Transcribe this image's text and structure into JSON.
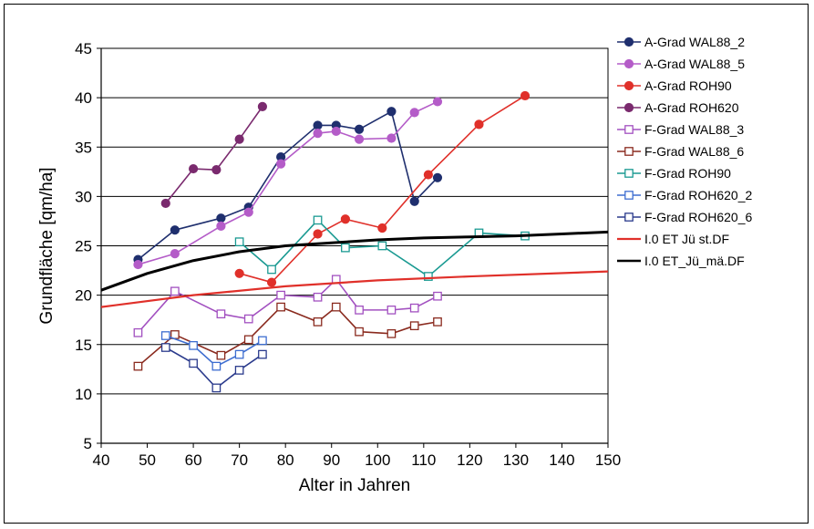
{
  "chart_data": {
    "type": "line",
    "title": "",
    "xlabel": "Alter in Jahren",
    "ylabel": "Grundfläche [qm/ha]",
    "xlim": [
      40,
      150
    ],
    "ylim": [
      5,
      45
    ],
    "xticks": [
      40,
      50,
      60,
      70,
      80,
      90,
      100,
      110,
      120,
      130,
      140,
      150
    ],
    "yticks": [
      5,
      10,
      15,
      20,
      25,
      30,
      35,
      40,
      45
    ],
    "grid": "horizontal",
    "legend_position": "right",
    "series": [
      {
        "name": "A-Grad WAL88_2",
        "color": "#1f2f6e",
        "marker": "filled-circle",
        "x": [
          48,
          56,
          66,
          72,
          79,
          87,
          91,
          96,
          103,
          108,
          113
        ],
        "y": [
          23.6,
          26.6,
          27.8,
          28.9,
          34.0,
          37.2,
          37.2,
          36.8,
          38.6,
          29.5,
          31.9
        ]
      },
      {
        "name": "A-Grad WAL88_5",
        "color": "#b45cc8",
        "marker": "filled-circle",
        "x": [
          48,
          56,
          66,
          72,
          79,
          87,
          91,
          96,
          103,
          108,
          113
        ],
        "y": [
          23.1,
          24.2,
          27.0,
          28.4,
          33.3,
          36.4,
          36.6,
          35.8,
          35.9,
          38.5,
          39.6
        ]
      },
      {
        "name": "A-Grad ROH90",
        "color": "#e0302a",
        "marker": "filled-circle",
        "x": [
          70,
          77,
          87,
          93,
          101,
          111,
          122,
          132
        ],
        "y": [
          22.2,
          21.3,
          26.2,
          27.7,
          26.8,
          32.2,
          37.3,
          40.2
        ]
      },
      {
        "name": "A-Grad ROH620",
        "color": "#7a2a6e",
        "marker": "filled-circle",
        "x": [
          54,
          60,
          65,
          70,
          75
        ],
        "y": [
          29.3,
          32.8,
          32.7,
          35.8,
          39.1
        ]
      },
      {
        "name": "F-Grad WAL88_3",
        "color": "#a250c0",
        "marker": "open-square",
        "x": [
          48,
          56,
          66,
          72,
          79,
          87,
          91,
          96,
          103,
          108,
          113
        ],
        "y": [
          16.2,
          20.4,
          18.1,
          17.6,
          20.0,
          19.8,
          21.6,
          18.5,
          18.5,
          18.7,
          19.9
        ]
      },
      {
        "name": "F-Grad WAL88_6",
        "color": "#8a2a1e",
        "marker": "open-square",
        "x": [
          48,
          56,
          66,
          72,
          79,
          87,
          91,
          96,
          103,
          108,
          113
        ],
        "y": [
          12.8,
          16.0,
          13.9,
          15.5,
          18.8,
          17.3,
          18.8,
          16.3,
          16.1,
          16.9,
          17.3
        ]
      },
      {
        "name": "F-Grad ROH90",
        "color": "#1a9a92",
        "marker": "open-square",
        "x": [
          70,
          77,
          87,
          93,
          101,
          111,
          122,
          132
        ],
        "y": [
          25.4,
          22.6,
          27.6,
          24.8,
          25.0,
          21.9,
          26.3,
          26.0
        ]
      },
      {
        "name": "F-Grad ROH620_2",
        "color": "#3d6dd0",
        "marker": "open-square",
        "x": [
          54,
          60,
          65,
          70,
          75
        ],
        "y": [
          15.9,
          14.9,
          12.8,
          14.0,
          15.4
        ]
      },
      {
        "name": "F-Grad ROH620_6",
        "color": "#2a3a8c",
        "marker": "open-square",
        "x": [
          54,
          60,
          65,
          70,
          75
        ],
        "y": [
          14.7,
          13.1,
          10.6,
          12.4,
          14.0
        ]
      },
      {
        "name": "I.0 ET  Jü  st.DF",
        "color": "#e0302a",
        "marker": "none",
        "width": 2.2,
        "x": [
          40,
          60,
          80,
          100,
          120,
          150
        ],
        "y": [
          18.8,
          20.0,
          20.9,
          21.5,
          21.9,
          22.4
        ]
      },
      {
        "name": "I.0 ET_Jü_mä.DF",
        "color": "#000000",
        "marker": "none",
        "width": 3,
        "x": [
          40,
          50,
          60,
          70,
          80,
          90,
          100,
          110,
          120,
          130,
          140,
          150
        ],
        "y": [
          20.5,
          22.2,
          23.5,
          24.4,
          25.0,
          25.3,
          25.6,
          25.8,
          25.9,
          26.0,
          26.2,
          26.4
        ]
      }
    ]
  }
}
